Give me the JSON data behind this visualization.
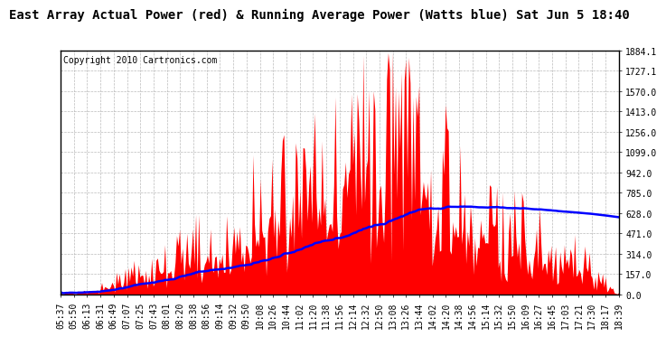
{
  "title": "East Array Actual Power (red) & Running Average Power (Watts blue) Sat Jun 5 18:40",
  "copyright": "Copyright 2010 Cartronics.com",
  "yticks": [
    0.0,
    157.0,
    314.0,
    471.0,
    628.0,
    785.0,
    942.0,
    1099.0,
    1256.0,
    1413.0,
    1570.0,
    1727.1,
    1884.1
  ],
  "ymax": 1884.1,
  "ymin": 0.0,
  "xtick_labels": [
    "05:37",
    "05:50",
    "06:13",
    "06:31",
    "06:49",
    "07:07",
    "07:25",
    "07:43",
    "08:01",
    "08:20",
    "08:38",
    "08:56",
    "09:14",
    "09:32",
    "09:50",
    "10:08",
    "10:26",
    "10:44",
    "11:02",
    "11:20",
    "11:38",
    "11:56",
    "12:14",
    "12:32",
    "12:50",
    "13:08",
    "13:26",
    "13:44",
    "14:02",
    "14:20",
    "14:38",
    "14:56",
    "15:14",
    "15:32",
    "15:50",
    "16:09",
    "16:27",
    "16:45",
    "17:03",
    "17:21",
    "17:30",
    "18:17",
    "18:39"
  ],
  "fill_color": "#FF0000",
  "line_color": "#0000FF",
  "background_color": "#FFFFFF",
  "grid_color": "#AAAAAA",
  "title_fontsize": 10,
  "copyright_fontsize": 7,
  "tick_fontsize": 7
}
